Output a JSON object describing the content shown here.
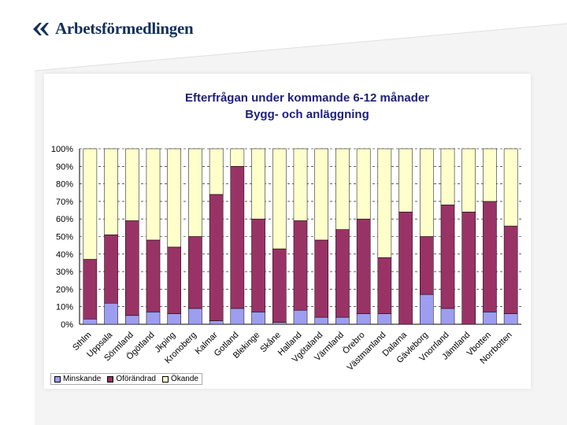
{
  "brand": {
    "name": "Arbetsförmedlingen",
    "icon": "double-chevron-logo-icon"
  },
  "colors": {
    "minskande": "#9e9ef0",
    "oforandrad": "#993366",
    "okande": "#ffffcc",
    "title": "#1f1f7a"
  },
  "chart_data": {
    "type": "bar",
    "stacked": true,
    "title": "Efterfrågan under kommande 6-12 månader",
    "subtitle": "Bygg- och anläggning",
    "xlabel": "",
    "ylabel": "",
    "ylim": [
      0,
      100
    ],
    "yticks": [
      "0%",
      "10%",
      "20%",
      "30%",
      "40%",
      "50%",
      "60%",
      "70%",
      "80%",
      "90%",
      "100%"
    ],
    "legend_position": "bottom-left",
    "categories": [
      "Sthlm",
      "Uppsala",
      "Sörmland",
      "Ögötland",
      "Jkping",
      "Kronoberg",
      "Kalmar",
      "Gotland",
      "Blekinge",
      "Skåne",
      "Halland",
      "Vgötaland",
      "Värmland",
      "Örebro",
      "Västmanland",
      "Dalarna",
      "Gävleborg",
      "Vnorrland",
      "Jämtland",
      "Vbotten",
      "Norrbotten"
    ],
    "series": [
      {
        "name": "Minskande",
        "values": [
          3,
          12,
          5,
          7,
          6,
          9,
          2,
          9,
          7,
          1,
          8,
          4,
          4,
          6,
          6,
          0,
          17,
          9,
          0,
          7,
          6
        ]
      },
      {
        "name": "Oförändrad",
        "values": [
          34,
          39,
          54,
          41,
          38,
          41,
          72,
          81,
          53,
          42,
          51,
          44,
          50,
          54,
          32,
          64,
          33,
          59,
          64,
          63,
          50
        ]
      },
      {
        "name": "Ökande",
        "values": [
          63,
          49,
          41,
          52,
          56,
          50,
          26,
          10,
          40,
          57,
          41,
          52,
          46,
          40,
          62,
          36,
          50,
          32,
          36,
          30,
          44
        ]
      }
    ]
  },
  "legend": {
    "items": [
      "Minskande",
      "Oförändrad",
      "Ökande"
    ]
  }
}
